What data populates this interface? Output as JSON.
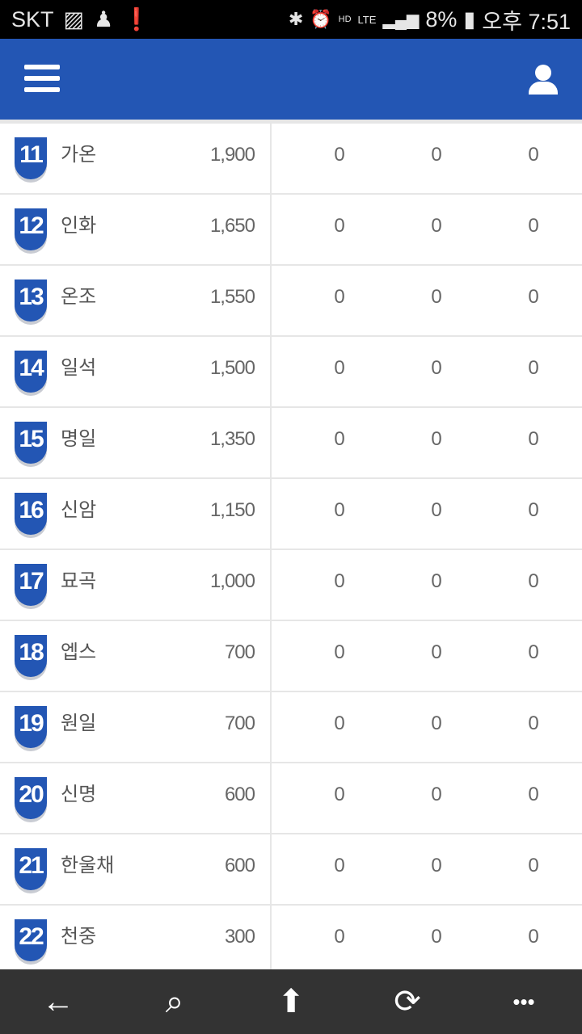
{
  "status_bar": {
    "carrier": "SKT",
    "battery": "8%",
    "time": "오후 7:51",
    "icons": [
      "image-icon",
      "notification-icon",
      "alert-icon",
      "bluetooth-icon",
      "alarm-icon",
      "hd-voice-icon",
      "lte-icon",
      "signal-icon",
      "battery-icon"
    ]
  },
  "header": {
    "menu_icon": "hamburger-icon",
    "user_icon": "user-icon"
  },
  "rows": [
    {
      "rank": "11",
      "name": "가온",
      "score": "1,900",
      "c1": "0",
      "c2": "0",
      "c3": "0"
    },
    {
      "rank": "12",
      "name": "인화",
      "score": "1,650",
      "c1": "0",
      "c2": "0",
      "c3": "0"
    },
    {
      "rank": "13",
      "name": "온조",
      "score": "1,550",
      "c1": "0",
      "c2": "0",
      "c3": "0"
    },
    {
      "rank": "14",
      "name": "일석",
      "score": "1,500",
      "c1": "0",
      "c2": "0",
      "c3": "0"
    },
    {
      "rank": "15",
      "name": "명일",
      "score": "1,350",
      "c1": "0",
      "c2": "0",
      "c3": "0"
    },
    {
      "rank": "16",
      "name": "신암",
      "score": "1,150",
      "c1": "0",
      "c2": "0",
      "c3": "0"
    },
    {
      "rank": "17",
      "name": "묘곡",
      "score": "1,000",
      "c1": "0",
      "c2": "0",
      "c3": "0"
    },
    {
      "rank": "18",
      "name": "엡스",
      "score": "700",
      "c1": "0",
      "c2": "0",
      "c3": "0"
    },
    {
      "rank": "19",
      "name": "원일",
      "score": "700",
      "c1": "0",
      "c2": "0",
      "c3": "0"
    },
    {
      "rank": "20",
      "name": "신명",
      "score": "600",
      "c1": "0",
      "c2": "0",
      "c3": "0"
    },
    {
      "rank": "21",
      "name": "한울채",
      "score": "600",
      "c1": "0",
      "c2": "0",
      "c3": "0"
    },
    {
      "rank": "22",
      "name": "천중",
      "score": "300",
      "c1": "0",
      "c2": "0",
      "c3": "0"
    }
  ],
  "colors": {
    "brand": "#2356b4",
    "nav_bg": "#333333"
  },
  "nav": {
    "back": "←",
    "search": "⌕",
    "home": "⬆",
    "refresh": "⟳",
    "more": "•••"
  }
}
